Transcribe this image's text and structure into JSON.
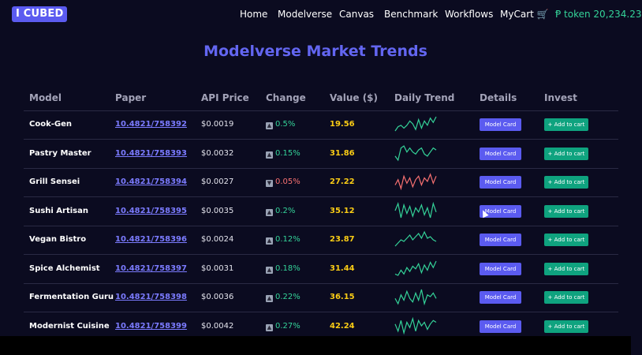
{
  "brand": {
    "logo": "I CUBED"
  },
  "nav": [
    "Home",
    "Modelverse",
    "Canvas",
    "Benchmark",
    "Workflows",
    "MyCart 🛒"
  ],
  "token": "Ᵽ token 20,234.23",
  "title": "Modelverse Market Trends",
  "table": {
    "headers": [
      "Model",
      "Paper",
      "API Price",
      "Change",
      "Value ($)",
      "Daily Trend",
      "Details",
      "Invest"
    ],
    "rows": [
      {
        "model": "Cook-Gen",
        "paper": "10.4821/758392",
        "price": "$0.0019",
        "change": "0.5%",
        "dir": "up",
        "value": "19.56",
        "details": "Model Card",
        "invest": "+ Add to cart",
        "trend": [
          5,
          8,
          9,
          7,
          9,
          12,
          10,
          6,
          13,
          7,
          12,
          9,
          14,
          11,
          15
        ]
      },
      {
        "model": "Pastry Master",
        "paper": "10.4821/758393",
        "price": "$0.0032",
        "change": "0.15%",
        "dir": "up",
        "value": "31.86",
        "details": "Model Card",
        "invest": "+ Add to cart",
        "trend": [
          8,
          6,
          12,
          13,
          10,
          12,
          10,
          9,
          11,
          12,
          9,
          8,
          10,
          12,
          11
        ]
      },
      {
        "model": "Grill Sensei",
        "paper": "10.4821/758394",
        "price": "$0.0027",
        "change": "0.05%",
        "dir": "down",
        "value": "27.22",
        "details": "Model Card",
        "invest": "+ Add to cart",
        "trend": [
          7,
          10,
          5,
          12,
          8,
          11,
          6,
          10,
          12,
          7,
          11,
          9,
          13,
          8,
          12
        ]
      },
      {
        "model": "Sushi Artisan",
        "paper": "10.4821/758395",
        "price": "$0.0035",
        "change": "0.2%",
        "dir": "up",
        "value": "35.12",
        "details": "Model Card",
        "invest": "+ Add to cart",
        "trend": [
          10,
          15,
          5,
          14,
          8,
          13,
          6,
          12,
          9,
          14,
          7,
          12,
          5,
          15,
          9
        ]
      },
      {
        "model": "Vegan Bistro",
        "paper": "10.4821/758396",
        "price": "$0.0024",
        "change": "0.12%",
        "dir": "up",
        "value": "23.87",
        "details": "Model Card",
        "invest": "+ Add to cart",
        "trend": [
          5,
          7,
          9,
          8,
          10,
          12,
          9,
          11,
          13,
          10,
          14,
          10,
          11,
          9,
          8
        ]
      },
      {
        "model": "Spice Alchemist",
        "paper": "10.4821/758397",
        "price": "$0.0031",
        "change": "0.18%",
        "dir": "up",
        "value": "31.44",
        "details": "Model Card",
        "invest": "+ Add to cart",
        "trend": [
          5,
          4,
          8,
          5,
          10,
          7,
          11,
          9,
          13,
          6,
          12,
          8,
          14,
          10,
          15
        ]
      },
      {
        "model": "Fermentation Guru",
        "paper": "10.4821/758398",
        "price": "$0.0036",
        "change": "0.22%",
        "dir": "up",
        "value": "36.15",
        "details": "Model Card",
        "invest": "+ Add to cart",
        "trend": [
          9,
          6,
          11,
          8,
          13,
          9,
          7,
          12,
          8,
          14,
          6,
          11,
          10,
          12,
          9
        ]
      },
      {
        "model": "Modernist Cuisine",
        "paper": "10.4821/758399",
        "price": "$0.0042",
        "change": "0.27%",
        "dir": "up",
        "value": "42.24",
        "details": "Model Card",
        "invest": "+ Add to cart",
        "trend": [
          10,
          6,
          12,
          5,
          11,
          8,
          13,
          6,
          12,
          9,
          11,
          7,
          10,
          12,
          11
        ]
      }
    ]
  },
  "colors": {
    "up": "#34d399",
    "down": "#f87171",
    "accent": "#5b5bf0",
    "value": "#facc15",
    "invest": "#0fa37f",
    "trend_up": "#34d399",
    "trend_down": "#f87171"
  }
}
